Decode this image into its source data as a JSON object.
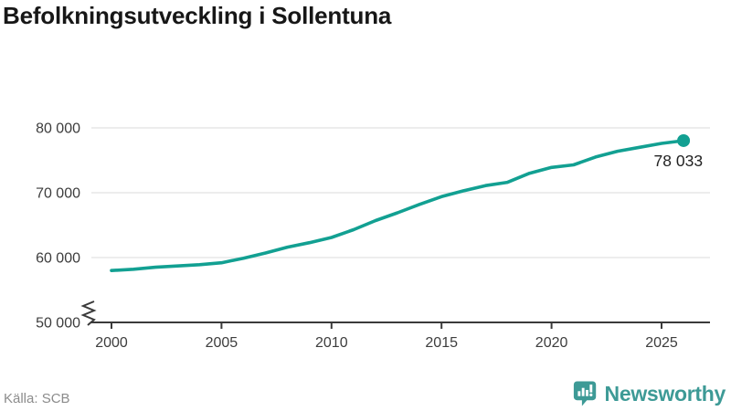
{
  "header": {
    "title": "Befolkningsutveckling i Sollentuna"
  },
  "chart_data": {
    "type": "line",
    "title": "Befolkningsutveckling i Sollentuna",
    "series_name": "Befolkning",
    "x": [
      2000,
      2001,
      2002,
      2003,
      2004,
      2005,
      2006,
      2007,
      2008,
      2009,
      2010,
      2011,
      2012,
      2013,
      2014,
      2015,
      2016,
      2017,
      2018,
      2019,
      2020,
      2021,
      2022,
      2023,
      2024,
      2025,
      2026
    ],
    "values": [
      58000,
      58200,
      58500,
      58700,
      58900,
      59200,
      59900,
      60700,
      61600,
      62300,
      63100,
      64300,
      65700,
      66900,
      68200,
      69400,
      70300,
      71100,
      71600,
      73000,
      73900,
      74300,
      75500,
      76400,
      77000,
      77600,
      78033
    ],
    "ylim": [
      50000,
      80000
    ],
    "yticks": [
      50000,
      60000,
      70000,
      80000
    ],
    "ytick_labels": [
      "50 000",
      "60 000",
      "70 000",
      "80 000"
    ],
    "xticks": [
      2000,
      2005,
      2010,
      2015,
      2020,
      2025
    ],
    "xtick_labels": [
      "2000",
      "2005",
      "2010",
      "2015",
      "2020",
      "2025"
    ],
    "grid": "horizontal",
    "axis_break": true,
    "last_value_label": "78 033",
    "legend": "none"
  },
  "footer": {
    "source": "Källa: SCB",
    "brand": "Newsworthy"
  },
  "colors": {
    "line": "#12a092",
    "brand": "#3d9a96",
    "grid": "#e7e7e7",
    "axis": "#3a3a3a",
    "tick_text": "#3d3d3d",
    "annotation_text": "#222222",
    "text": "#171717",
    "muted": "#8c8c8c",
    "logo_glyph": "#ffffff"
  }
}
